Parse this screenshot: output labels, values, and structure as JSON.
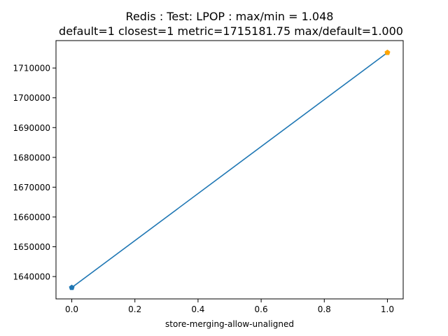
{
  "chart_data": {
    "type": "line",
    "title_line1": "Redis : Test: LPOP : max/min = 1.048",
    "title_line2": "default=1 closest=1 metric=1715181.75 max/default=1.000",
    "xlabel": "store-merging-allow-unaligned",
    "ylabel": "",
    "xlim": [
      -0.05,
      1.05
    ],
    "ylim": [
      1632500,
      1719200
    ],
    "x_ticks": [
      {
        "value": 0.0,
        "label": "0.0"
      },
      {
        "value": 0.2,
        "label": "0.2"
      },
      {
        "value": 0.4,
        "label": "0.4"
      },
      {
        "value": 0.6,
        "label": "0.6"
      },
      {
        "value": 0.8,
        "label": "0.8"
      },
      {
        "value": 1.0,
        "label": "1.0"
      }
    ],
    "y_ticks": [
      {
        "value": 1640000,
        "label": "1640000"
      },
      {
        "value": 1650000,
        "label": "1650000"
      },
      {
        "value": 1660000,
        "label": "1660000"
      },
      {
        "value": 1670000,
        "label": "1670000"
      },
      {
        "value": 1680000,
        "label": "1680000"
      },
      {
        "value": 1690000,
        "label": "1690000"
      },
      {
        "value": 1700000,
        "label": "1700000"
      },
      {
        "value": 1710000,
        "label": "1710000"
      }
    ],
    "series": [
      {
        "x": [
          0,
          1
        ],
        "y": [
          1636300,
          1715181.75
        ],
        "color": "#1f77b4"
      }
    ],
    "markers": [
      {
        "x": 0,
        "y": 1636300,
        "color": "#1f77b4"
      },
      {
        "x": 1,
        "y": 1715181.75,
        "color": "#ffa500"
      }
    ],
    "grid": false
  }
}
